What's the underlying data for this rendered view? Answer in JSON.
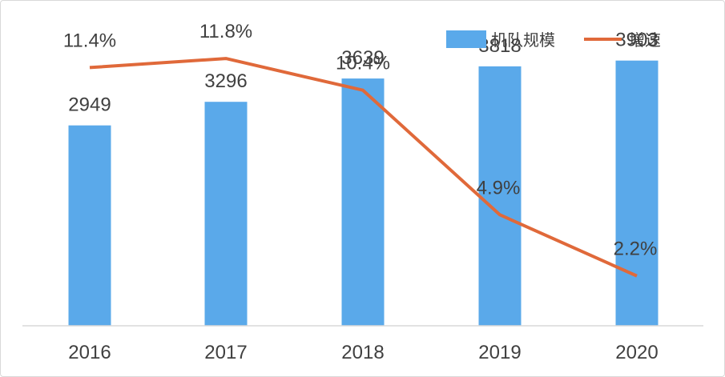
{
  "chart_data": {
    "type": "bar",
    "categories": [
      "2016",
      "2017",
      "2018",
      "2019",
      "2020"
    ],
    "series": [
      {
        "name": "机队规模",
        "kind": "bar",
        "color": "#5aa9ea",
        "values": [
          2949,
          3296,
          3639,
          3818,
          3903
        ],
        "labels": [
          "2949",
          "3296",
          "3639",
          "3818",
          "3903"
        ]
      },
      {
        "name": "增速",
        "kind": "line",
        "color": "#e0693a",
        "values": [
          11.4,
          11.8,
          10.4,
          4.9,
          2.2
        ],
        "labels": [
          "11.4%",
          "11.8%",
          "10.4%",
          "4.9%",
          "2.2%"
        ]
      }
    ],
    "y_bar_range": [
      0,
      4500
    ],
    "y_line_range": [
      0,
      13.5
    ],
    "grid": false,
    "legend": "top-right"
  }
}
